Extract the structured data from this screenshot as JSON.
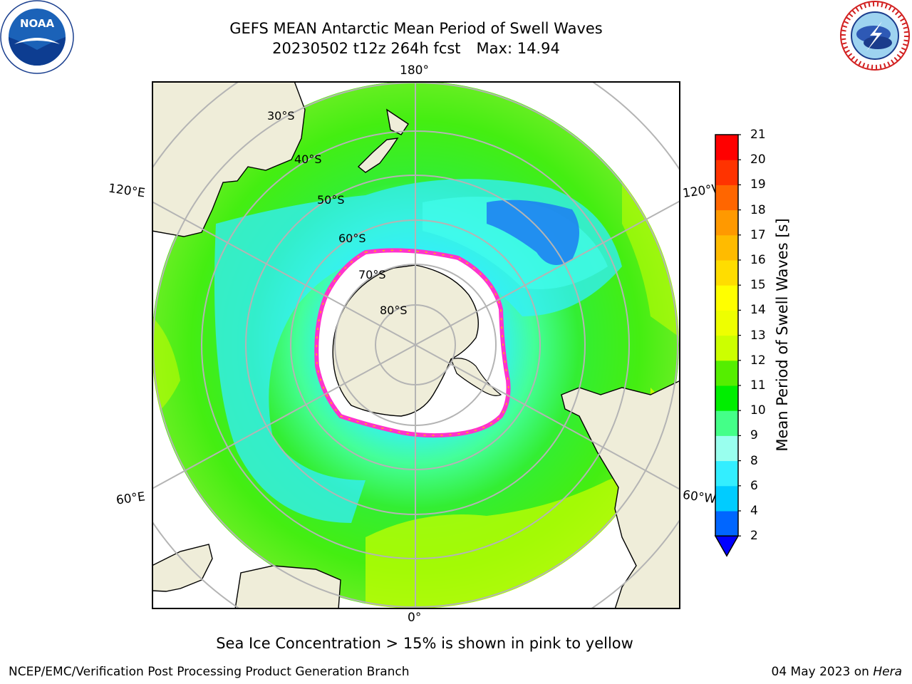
{
  "title": {
    "line1": "GEFS MEAN Antarctic Mean Period of Swell Waves",
    "line2": "20230502 t12z 264h fcst",
    "max": "Max: 14.94"
  },
  "logos": {
    "noaa": {
      "text": "NOAA",
      "ring_text": "NATIONAL OCEANIC AND ATMOSPHERIC ADMINISTRATION · U.S. DEPARTMENT OF COMMERCE"
    },
    "nws": {
      "ring_text": "NATIONAL WEATHER SERVICE"
    }
  },
  "map": {
    "projection": "south-polar-stereographic",
    "longitude_labels": {
      "top": "180°",
      "bottom": "0°",
      "upper_left": "120°E",
      "upper_right": "120°W",
      "lower_left": "60°E",
      "lower_right": "60°W"
    },
    "latitude_labels": [
      "30°S",
      "40°S",
      "50°S",
      "60°S",
      "70°S",
      "80°S"
    ],
    "colors": {
      "land": "#efedd9",
      "ice_shelf": "#ffffff",
      "sea_ice_edge": "#ff33cc",
      "gridlines": "#b4b4b4"
    }
  },
  "colorbar": {
    "label": "Mean Period of Swell Waves [s]",
    "ticks": [
      "2",
      "4",
      "6",
      "8",
      "9",
      "10",
      "11",
      "12",
      "13",
      "14",
      "15",
      "16",
      "17",
      "18",
      "19",
      "20",
      "21"
    ],
    "colors": [
      "#0066ff",
      "#00ccff",
      "#33eeff",
      "#99ffee",
      "#44ff88",
      "#00ee00",
      "#55ee00",
      "#ccff00",
      "#eeff00",
      "#ffff00",
      "#ffdd00",
      "#ffbb00",
      "#ff9900",
      "#ff6600",
      "#ff3300",
      "#ff0000"
    ],
    "under_color": "#0000ff"
  },
  "footer": {
    "note": "Sea Ice Concentration > 15% is shown in pink to yellow",
    "credit": "NCEP/EMC/Verification Post Processing Product Generation Branch",
    "date": "04 May 2023 on",
    "machine": "Hera"
  }
}
